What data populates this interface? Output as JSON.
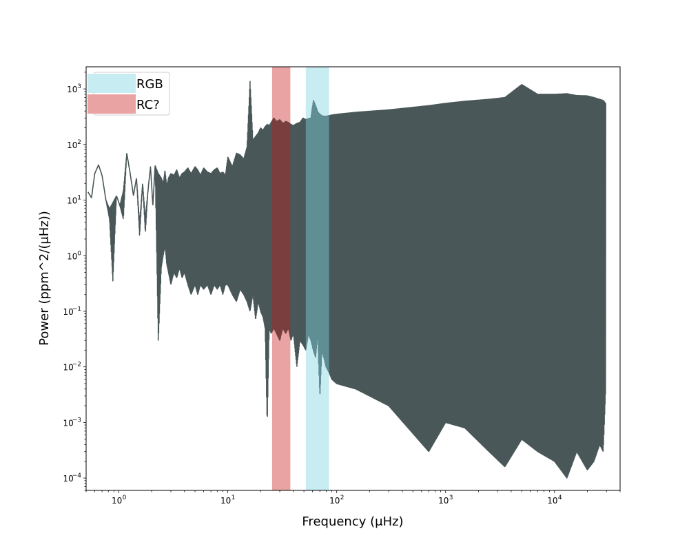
{
  "chart_data": {
    "type": "line",
    "title": "",
    "xlabel": "Frequency (μHz)",
    "ylabel": "Power (ppm^2/(μHz))",
    "xscale": "log",
    "yscale": "log",
    "xlim": [
      0.5,
      40000
    ],
    "ylim": [
      6e-05,
      2500
    ],
    "x_ticks": [
      {
        "base": "10",
        "exp": "0",
        "value": 1
      },
      {
        "base": "10",
        "exp": "1",
        "value": 10
      },
      {
        "base": "10",
        "exp": "2",
        "value": 100
      },
      {
        "base": "10",
        "exp": "3",
        "value": 1000
      },
      {
        "base": "10",
        "exp": "4",
        "value": 10000
      }
    ],
    "y_ticks": [
      {
        "base": "10",
        "exp": "−4",
        "value": 0.0001
      },
      {
        "base": "10",
        "exp": "−3",
        "value": 0.001
      },
      {
        "base": "10",
        "exp": "−2",
        "value": 0.01
      },
      {
        "base": "10",
        "exp": "−1",
        "value": 0.1
      },
      {
        "base": "10",
        "exp": "0",
        "value": 1
      },
      {
        "base": "10",
        "exp": "1",
        "value": 10
      },
      {
        "base": "10",
        "exp": "2",
        "value": 100
      },
      {
        "base": "10",
        "exp": "3",
        "value": 1000
      }
    ],
    "grid": false,
    "legend_position": "top-left",
    "bands": [
      {
        "name": "RGB",
        "x_range": [
          52,
          85
        ],
        "color": "#c7ecf2"
      },
      {
        "name": "RC?",
        "x_range": [
          25.5,
          37.5
        ],
        "color": "#eaa3a3"
      }
    ],
    "series": [
      {
        "color": "#4a5759",
        "band_overlay_colors": {
          "RGB": "#5f8e94",
          "RC?": "#7a3e3e"
        },
        "x": [
          0.52,
          0.56,
          0.6,
          0.65,
          0.7,
          0.76,
          0.82,
          0.88,
          0.95,
          1.02,
          1.1,
          1.18,
          1.27,
          1.36,
          1.45,
          1.55,
          1.65,
          1.75,
          1.85,
          1.95,
          2.05,
          2.15,
          2.3,
          2.45,
          2.55,
          2.65,
          2.75,
          2.85,
          3.0,
          3.2,
          3.4,
          3.6,
          3.8,
          4.0,
          4.3,
          4.6,
          5.0,
          5.3,
          5.6,
          6.0,
          6.5,
          7.0,
          7.5,
          8.0,
          8.5,
          9.0,
          9.5,
          10.0,
          11.0,
          12.0,
          13.0,
          14.0,
          15.0,
          16.0,
          17.0,
          18.0,
          19.0,
          20.0,
          21.0,
          22.0,
          23.0,
          24.0,
          25.0,
          26.5,
          28.0,
          30.0,
          32.0,
          34.0,
          36.0,
          38.0,
          40.0,
          43.0,
          46.0,
          49.0,
          52.0,
          55.0,
          58.0,
          61.0,
          64.0,
          67.0,
          70.0,
          73.0,
          76.0,
          80.0,
          85.0,
          90.0,
          100.0,
          150.0,
          300.0,
          700.0,
          1000.0,
          1500.0,
          2500.0,
          3500.0,
          5000.0,
          7000.0,
          10000.0,
          13000.0,
          16000.0,
          20000.0,
          23000.0,
          26000.0,
          28000.0,
          29500.0
        ],
        "y_upper": [
          14,
          11,
          30,
          43,
          28,
          10,
          7,
          9,
          12,
          8,
          15,
          70,
          30,
          12,
          25,
          4,
          20,
          5,
          15,
          40,
          8,
          42,
          30,
          25,
          20,
          35,
          18,
          25,
          30,
          28,
          35,
          25,
          30,
          32,
          38,
          30,
          40,
          35,
          28,
          38,
          32,
          30,
          35,
          38,
          30,
          32,
          28,
          60,
          40,
          70,
          65,
          55,
          90,
          1400,
          120,
          140,
          160,
          200,
          180,
          210,
          230,
          220,
          250,
          300,
          260,
          280,
          240,
          260,
          250,
          230,
          220,
          240,
          250,
          300,
          280,
          290,
          300,
          620,
          500,
          380,
          350,
          330,
          320,
          320,
          330,
          340,
          350,
          380,
          420,
          500,
          550,
          600,
          650,
          700,
          1200,
          800,
          800,
          820,
          760,
          750,
          700,
          650,
          620,
          550
        ],
        "y_lower": [
          14,
          11,
          30,
          43,
          28,
          10,
          4.5,
          0.35,
          12,
          8,
          4.5,
          70,
          30,
          12,
          25,
          2.2,
          20,
          2.5,
          15,
          40,
          8,
          42,
          0.028,
          0.6,
          1.0,
          1.5,
          0.7,
          0.5,
          0.3,
          0.5,
          0.4,
          0.6,
          0.4,
          0.5,
          0.3,
          0.2,
          0.3,
          0.2,
          0.3,
          0.25,
          0.3,
          0.2,
          0.3,
          0.25,
          0.3,
          0.2,
          0.3,
          0.3,
          0.2,
          0.15,
          0.25,
          0.2,
          0.15,
          0.1,
          0.2,
          0.07,
          0.15,
          0.1,
          0.08,
          0.05,
          0.0009,
          0.05,
          0.04,
          0.05,
          0.04,
          0.03,
          0.05,
          0.04,
          0.05,
          0.03,
          0.04,
          0.01,
          0.03,
          0.025,
          0.02,
          0.04,
          0.03,
          0.02,
          0.015,
          0.04,
          0.003,
          0.02,
          0.015,
          0.01,
          0.008,
          0.006,
          0.005,
          0.004,
          0.002,
          0.0003,
          0.001,
          0.0008,
          0.0003,
          0.00016,
          0.0005,
          0.0003,
          0.0002,
          0.0001,
          0.0003,
          0.00014,
          0.0002,
          0.0004,
          0.0003,
          0.004
        ]
      }
    ]
  }
}
